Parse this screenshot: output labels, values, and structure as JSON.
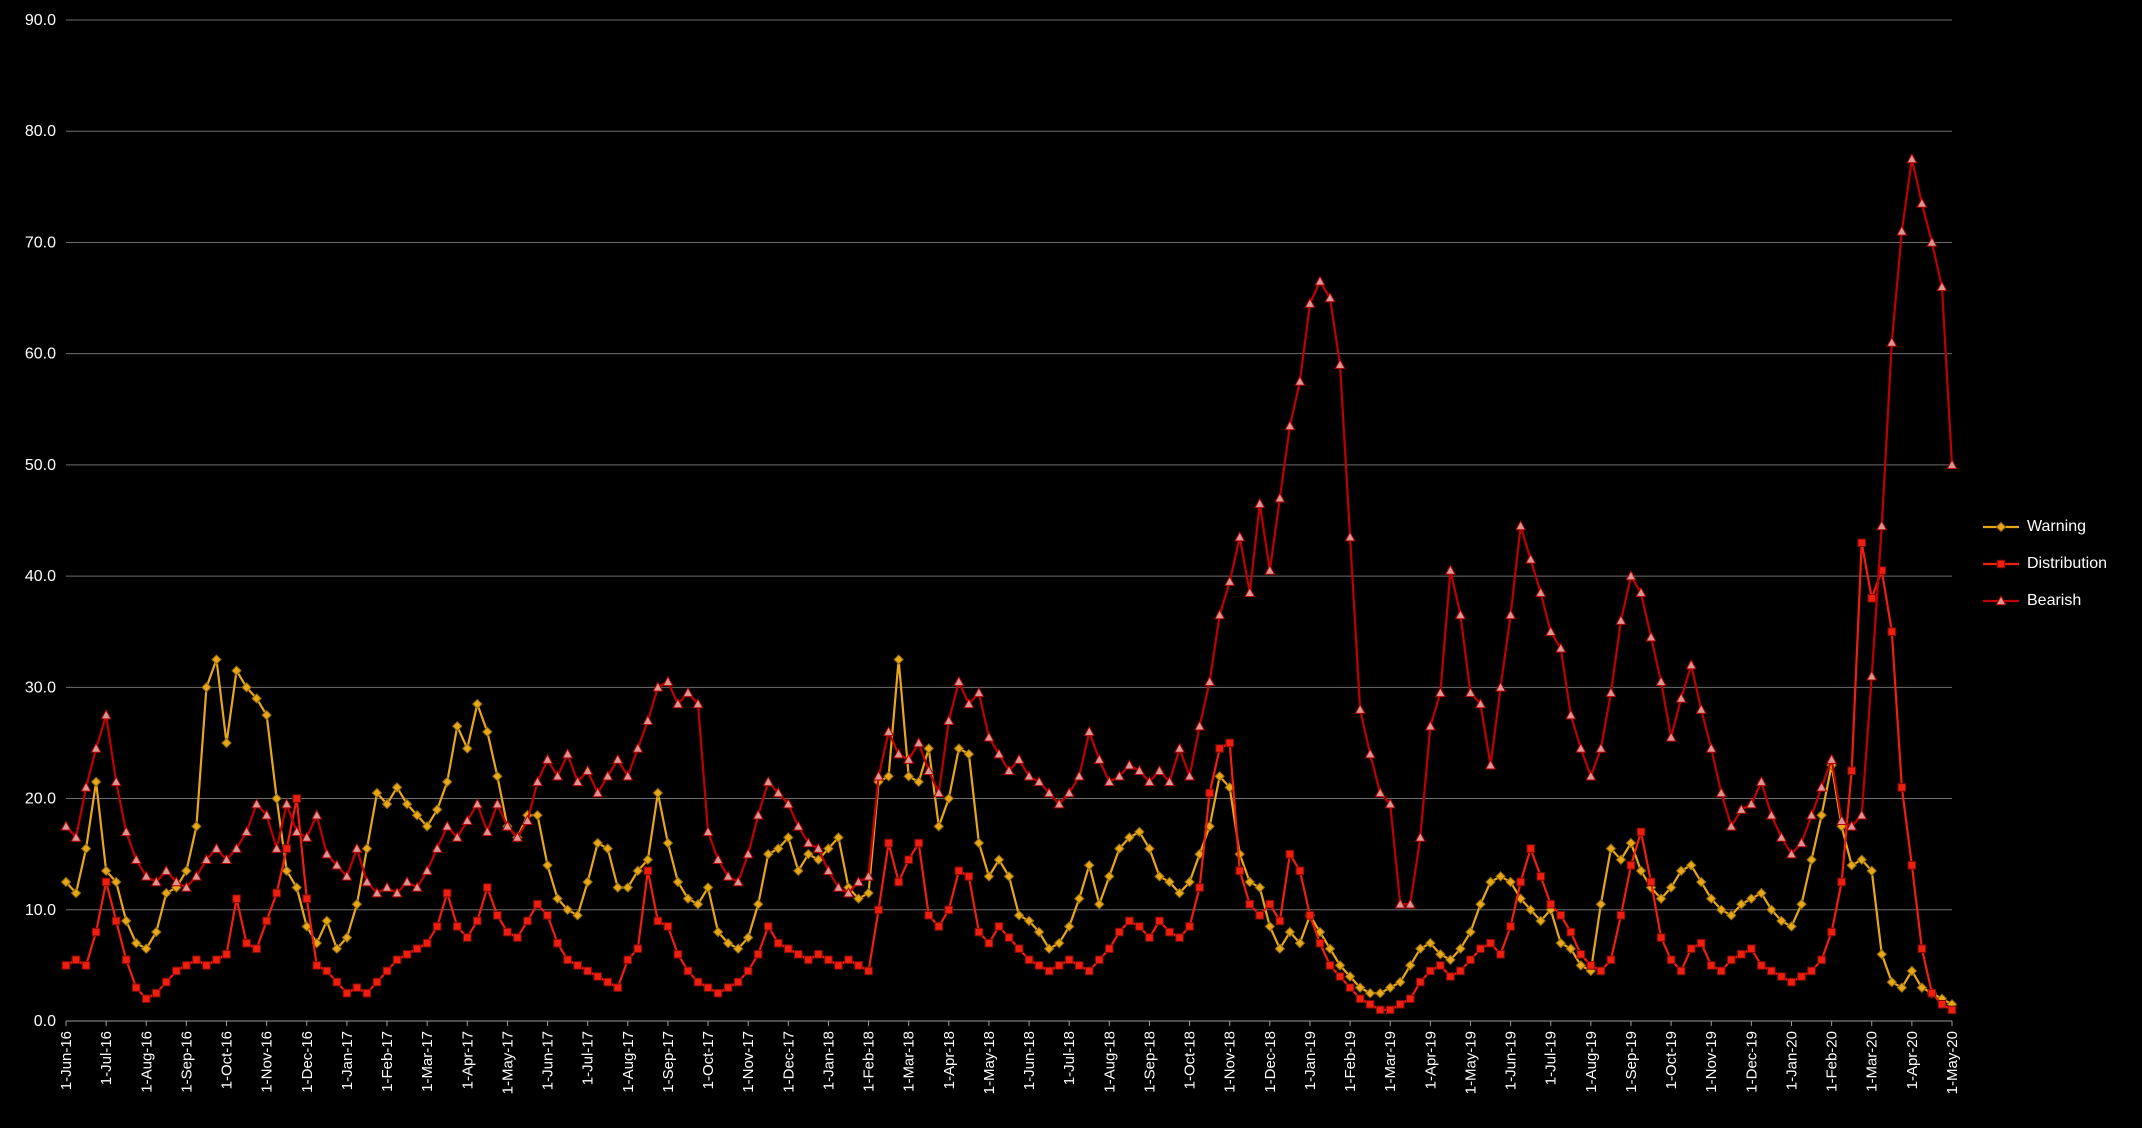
{
  "chart_data": {
    "type": "line",
    "background": "#000000",
    "grid": true,
    "grid_color": "#6E6E6E",
    "axis_color": "#9A9A9A",
    "text_color": "#FFFFFF",
    "ylim": [
      0,
      90
    ],
    "ytick_step": 10,
    "ytick_decimals": 1,
    "legend_position": "right",
    "x_labels": [
      "1-Jun-16",
      "1-Jul-16",
      "1-Aug-16",
      "1-Sep-16",
      "1-Oct-16",
      "1-Nov-16",
      "1-Dec-16",
      "1-Jan-17",
      "1-Feb-17",
      "1-Mar-17",
      "1-Apr-17",
      "1-May-17",
      "1-Jun-17",
      "1-Jul-17",
      "1-Aug-17",
      "1-Sep-17",
      "1-Oct-17",
      "1-Nov-17",
      "1-Dec-17",
      "1-Jan-18",
      "1-Feb-18",
      "1-Mar-18",
      "1-Apr-18",
      "1-May-18",
      "1-Jun-18",
      "1-Jul-18",
      "1-Aug-18",
      "1-Sep-18",
      "1-Oct-18",
      "1-Nov-18",
      "1-Dec-18",
      "1-Jan-19",
      "1-Feb-19",
      "1-Mar-19",
      "1-Apr-19",
      "1-May-19",
      "1-Jun-19",
      "1-Jul-19",
      "1-Aug-19",
      "1-Sep-19",
      "1-Oct-19",
      "1-Nov-19",
      "1-Dec-19",
      "1-Jan-20",
      "1-Feb-20",
      "1-Mar-20",
      "1-Apr-20",
      "1-May-20"
    ],
    "points_per_month": 4,
    "series": [
      {
        "name": "Warning",
        "color": "#E8A61A",
        "marker": "diamond",
        "marker_fill": "#E8A61A",
        "marker_stroke": "#8A6508",
        "values": [
          12.5,
          11.5,
          15.5,
          21.5,
          13.5,
          12.5,
          9,
          7,
          6.5,
          8,
          11.5,
          12,
          13.5,
          17.5,
          30,
          32.5,
          25,
          31.5,
          30,
          29,
          27.5,
          20,
          13.5,
          12,
          8.5,
          7,
          9,
          6.5,
          7.5,
          10.5,
          15.5,
          20.5,
          19.5,
          21,
          19.5,
          18.5,
          17.5,
          19,
          21.5,
          26.5,
          24.5,
          28.5,
          26,
          22,
          17.5,
          16.5,
          18.5,
          18.5,
          14,
          11,
          10,
          9.5,
          12.5,
          16,
          15.5,
          12,
          12,
          13.5,
          14.5,
          20.5,
          16,
          12.5,
          11,
          10.5,
          12,
          8,
          7,
          6.5,
          7.5,
          10.5,
          15,
          15.5,
          16.5,
          13.5,
          15,
          14.5,
          15.5,
          16.5,
          12,
          11,
          11.5,
          21.5,
          22,
          32.5,
          22,
          21.5,
          24.5,
          17.5,
          20,
          24.5,
          24,
          16,
          13,
          14.5,
          13,
          9.5,
          9,
          8,
          6.5,
          7,
          8.5,
          11,
          14,
          10.5,
          13,
          15.5,
          16.5,
          17,
          15.5,
          13,
          12.5,
          11.5,
          12.5,
          15,
          17.5,
          22,
          21,
          15,
          12.5,
          12,
          8.5,
          6.5,
          8,
          7,
          9.5,
          8,
          6.5,
          5,
          4,
          3,
          2.5,
          2.5,
          3,
          3.5,
          5,
          6.5,
          7,
          6,
          5.5,
          6.5,
          8,
          10.5,
          12.5,
          13,
          12.5,
          11,
          10,
          9,
          10,
          7,
          6.5,
          5,
          4.5,
          10.5,
          15.5,
          14.5,
          16,
          13.5,
          12,
          11,
          12,
          13.5,
          14,
          12.5,
          11,
          10,
          9.5,
          10.5,
          11,
          11.5,
          10,
          9,
          8.5,
          10.5,
          14.5,
          18.5,
          23,
          17.5,
          14,
          14.5,
          13.5,
          6,
          3.5,
          3,
          4.5,
          3,
          2.5,
          2,
          1.5
        ]
      },
      {
        "name": "Distribution",
        "color": "#F01E0F",
        "marker": "square",
        "marker_fill": "#F01E0F",
        "marker_stroke": "#7E0B06",
        "values": [
          5,
          5.5,
          5,
          8,
          12.5,
          9,
          5.5,
          3,
          2,
          2.5,
          3.5,
          4.5,
          5,
          5.5,
          5,
          5.5,
          6,
          11,
          7,
          6.5,
          9,
          11.5,
          15.5,
          20,
          11,
          5,
          4.5,
          3.5,
          2.5,
          3,
          2.5,
          3.5,
          4.5,
          5.5,
          6,
          6.5,
          7,
          8.5,
          11.5,
          8.5,
          7.5,
          9,
          12,
          9.5,
          8,
          7.5,
          9,
          10.5,
          9.5,
          7,
          5.5,
          5,
          4.5,
          4,
          3.5,
          3,
          5.5,
          6.5,
          13.5,
          9,
          8.5,
          6,
          4.5,
          3.5,
          3,
          2.5,
          3,
          3.5,
          4.5,
          6,
          8.5,
          7,
          6.5,
          6,
          5.5,
          6,
          5.5,
          5,
          5.5,
          5,
          4.5,
          10,
          16,
          12.5,
          14.5,
          16,
          9.5,
          8.5,
          10,
          13.5,
          13,
          8,
          7,
          8.5,
          7.5,
          6.5,
          5.5,
          5,
          4.5,
          5,
          5.5,
          5,
          4.5,
          5.5,
          6.5,
          8,
          9,
          8.5,
          7.5,
          9,
          8,
          7.5,
          8.5,
          12,
          20.5,
          24.5,
          25,
          13.5,
          10.5,
          9.5,
          10.5,
          9,
          15,
          13.5,
          9.5,
          7,
          5,
          4,
          3,
          2,
          1.5,
          1,
          1,
          1.5,
          2,
          3.5,
          4.5,
          5,
          4,
          4.5,
          5.5,
          6.5,
          7,
          6,
          8.5,
          12.5,
          15.5,
          13,
          10.5,
          9.5,
          8,
          6,
          5,
          4.5,
          5.5,
          9.5,
          14,
          17,
          12.5,
          7.5,
          5.5,
          4.5,
          6.5,
          7,
          5,
          4.5,
          5.5,
          6,
          6.5,
          5,
          4.5,
          4,
          3.5,
          4,
          4.5,
          5.5,
          8,
          12.5,
          22.5,
          43,
          38,
          40.5,
          35,
          21,
          14,
          6.5,
          2.5,
          1.5,
          1
        ]
      },
      {
        "name": "Bearish",
        "color": "#C00000",
        "marker": "triangle-up",
        "marker_fill": "#DA9694",
        "marker_stroke": "#B00000",
        "values": [
          17.5,
          16.5,
          21,
          24.5,
          27.5,
          21.5,
          17,
          14.5,
          13,
          12.5,
          13.5,
          12.5,
          12,
          13,
          14.5,
          15.5,
          14.5,
          15.5,
          17,
          19.5,
          18.5,
          15.5,
          19.5,
          17,
          16.5,
          18.5,
          15,
          14,
          13,
          15.5,
          12.5,
          11.5,
          12,
          11.5,
          12.5,
          12,
          13.5,
          15.5,
          17.5,
          16.5,
          18,
          19.5,
          17,
          19.5,
          17.5,
          16.5,
          18,
          21.5,
          23.5,
          22,
          24,
          21.5,
          22.5,
          20.5,
          22,
          23.5,
          22,
          24.5,
          27,
          30,
          30.5,
          28.5,
          29.5,
          28.5,
          17,
          14.5,
          13,
          12.5,
          15,
          18.5,
          21.5,
          20.5,
          19.5,
          17.5,
          16,
          15.5,
          13.5,
          12,
          11.5,
          12.5,
          13,
          22,
          26,
          24,
          23.5,
          25,
          22.5,
          20.5,
          27,
          30.5,
          28.5,
          29.5,
          25.5,
          24,
          22.5,
          23.5,
          22,
          21.5,
          20.5,
          19.5,
          20.5,
          22,
          26,
          23.5,
          21.5,
          22,
          23,
          22.5,
          21.5,
          22.5,
          21.5,
          24.5,
          22,
          26.5,
          30.5,
          36.5,
          39.5,
          43.5,
          38.5,
          46.5,
          40.5,
          47,
          53.5,
          57.5,
          64.5,
          66.5,
          65,
          59,
          43.5,
          28,
          24,
          20.5,
          19.5,
          10.5,
          10.5,
          16.5,
          26.5,
          29.5,
          40.5,
          36.5,
          29.5,
          28.5,
          23,
          30,
          36.5,
          44.5,
          41.5,
          38.5,
          35,
          33.5,
          27.5,
          24.5,
          22,
          24.5,
          29.5,
          36,
          40,
          38.5,
          34.5,
          30.5,
          25.5,
          29,
          32,
          28,
          24.5,
          20.5,
          17.5,
          19,
          19.5,
          21.5,
          18.5,
          16.5,
          15,
          16,
          18.5,
          21,
          23.5,
          18,
          17.5,
          18.5,
          31,
          44.5,
          61,
          71,
          77.5,
          73.5,
          70,
          66,
          50
        ]
      }
    ]
  }
}
